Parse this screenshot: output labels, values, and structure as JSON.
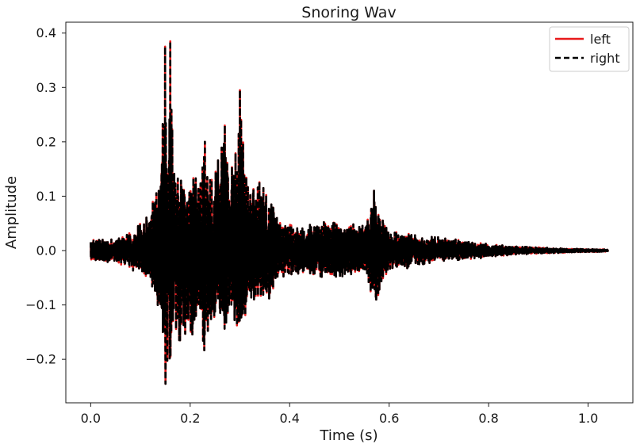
{
  "chart_data": {
    "type": "line",
    "title": "Snoring Wav",
    "xlabel": "Time (s)",
    "ylabel": "Amplitude",
    "xlim": [
      -0.05,
      1.09
    ],
    "ylim": [
      -0.28,
      0.42
    ],
    "x_ticks": [
      0.0,
      0.2,
      0.4,
      0.6,
      0.8,
      1.0
    ],
    "x_tick_labels": [
      "0.0",
      "0.2",
      "0.4",
      "0.6",
      "0.8",
      "1.0"
    ],
    "y_ticks": [
      -0.2,
      -0.1,
      0.0,
      0.1,
      0.2,
      0.3,
      0.4
    ],
    "y_tick_labels": [
      "−0.2",
      "−0.1",
      "0.0",
      "0.1",
      "0.2",
      "0.3",
      "0.4"
    ],
    "grid": false,
    "legend_position": "top-right",
    "series": [
      {
        "name": "left",
        "color": "#e8191a",
        "style": "solid"
      },
      {
        "name": "right",
        "color": "#000000",
        "style": "dashed"
      }
    ],
    "duration_s": 1.04,
    "envelope": {
      "x": [
        0.0,
        0.05,
        0.09,
        0.11,
        0.12,
        0.13,
        0.14,
        0.15,
        0.155,
        0.16,
        0.17,
        0.19,
        0.2,
        0.21,
        0.22,
        0.23,
        0.24,
        0.25,
        0.27,
        0.28,
        0.3,
        0.32,
        0.34,
        0.36,
        0.38,
        0.4,
        0.43,
        0.47,
        0.5,
        0.55,
        0.57,
        0.6,
        0.65,
        0.7,
        0.75,
        0.8,
        0.85,
        0.9,
        0.95,
        1.0,
        1.04
      ],
      "upper": [
        0.02,
        0.022,
        0.04,
        0.06,
        0.065,
        0.12,
        0.14,
        0.375,
        0.16,
        0.385,
        0.13,
        0.14,
        0.12,
        0.16,
        0.12,
        0.2,
        0.15,
        0.14,
        0.23,
        0.14,
        0.295,
        0.11,
        0.13,
        0.1,
        0.055,
        0.05,
        0.045,
        0.06,
        0.05,
        0.05,
        0.11,
        0.04,
        0.03,
        0.025,
        0.02,
        0.012,
        0.008,
        0.006,
        0.004,
        0.003,
        0.002
      ],
      "lower": [
        -0.02,
        -0.022,
        -0.04,
        -0.05,
        -0.06,
        -0.09,
        -0.12,
        -0.24,
        -0.2,
        -0.2,
        -0.16,
        -0.18,
        -0.15,
        -0.17,
        -0.12,
        -0.2,
        -0.15,
        -0.13,
        -0.16,
        -0.12,
        -0.18,
        -0.1,
        -0.09,
        -0.1,
        -0.05,
        -0.05,
        -0.04,
        -0.05,
        -0.05,
        -0.04,
        -0.1,
        -0.04,
        -0.03,
        -0.02,
        -0.018,
        -0.012,
        -0.008,
        -0.006,
        -0.004,
        -0.003,
        -0.002
      ]
    }
  }
}
